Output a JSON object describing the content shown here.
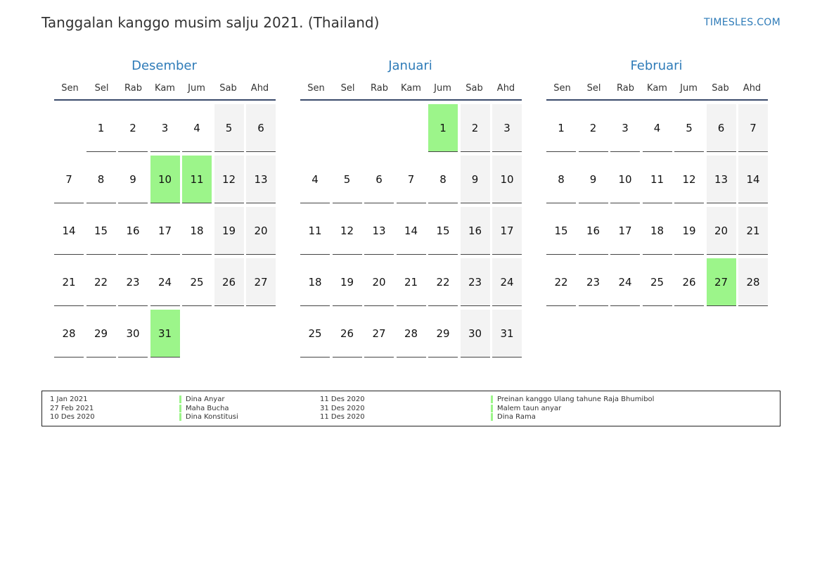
{
  "header": {
    "title": "Tanggalan kanggo musim salju 2021. (Thailand)",
    "brand": "TIMESLES.COM"
  },
  "colors": {
    "accent": "#2e7bb8",
    "holiday": "#9cf58a",
    "weekend": "#f3f3f3"
  },
  "weekdays": [
    "Sen",
    "Sel",
    "Rab",
    "Kam",
    "Jum",
    "Sab",
    "Ahd"
  ],
  "months": [
    {
      "name": "Desember",
      "start_offset": 1,
      "days": 31,
      "holidays": [
        10,
        11,
        31
      ]
    },
    {
      "name": "Januari",
      "start_offset": 4,
      "days": 31,
      "holidays": [
        1
      ]
    },
    {
      "name": "Februari",
      "start_offset": 0,
      "days": 28,
      "holidays": [
        27
      ]
    }
  ],
  "legend": [
    {
      "date": "1 Jan 2021",
      "name": "Dina Anyar",
      "date2": "11 Des 2020",
      "name2": "Preinan kanggo Ulang tahune Raja Bhumibol"
    },
    {
      "date": "27 Feb 2021",
      "name": "Maha Bucha",
      "date2": "31 Des 2020",
      "name2": "Malem taun anyar"
    },
    {
      "date": "10 Des 2020",
      "name": "Dina Konstitusi",
      "date2": "11 Des 2020",
      "name2": "Dina Rama"
    }
  ]
}
